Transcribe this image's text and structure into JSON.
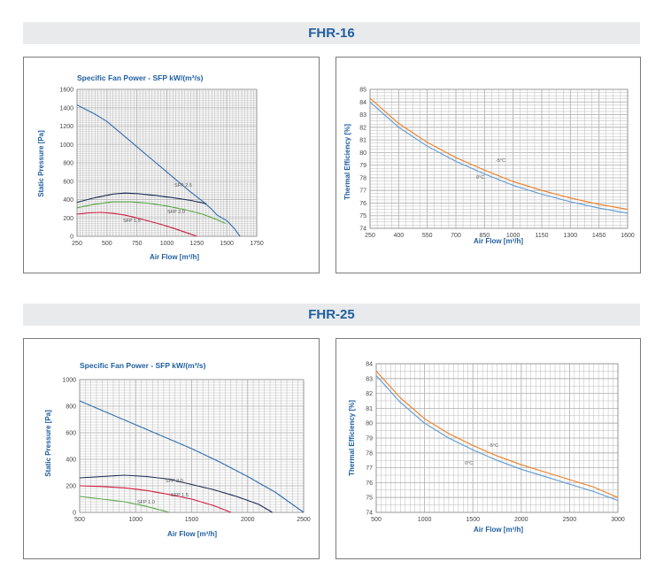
{
  "sections": [
    {
      "title": "FHR-16"
    },
    {
      "title": "FHR-25"
    }
  ],
  "colors": {
    "title_blue": "#1f5fa0",
    "pressure": "#2f6fb0",
    "sfp_dark": "#1a2c52",
    "sfp_green": "#5aaa46",
    "sfp_red": "#d11b3c",
    "thermal_minus5": "#ee7d22",
    "thermal_0": "#5b9bd5",
    "grid": "#b9b9b9"
  },
  "chart_data": [
    {
      "type": "line",
      "title": "Specific Fan Power - SFP kW/(m³/s)",
      "xlabel": "Air Flow [m³/h]",
      "ylabel": "Static Pressure [Pa]",
      "xlim": [
        250,
        1750
      ],
      "ylim": [
        0,
        1600
      ],
      "xticks": [
        250,
        500,
        750,
        1000,
        1250,
        1500,
        1750
      ],
      "yticks": [
        0,
        200,
        400,
        600,
        800,
        1000,
        1200,
        1400,
        1600
      ],
      "grid": true,
      "series": [
        {
          "color": "#2f6fb0",
          "x": [
            250,
            400,
            500,
            600,
            700,
            800,
            900,
            1000,
            1100,
            1200,
            1300,
            1370,
            1420,
            1500,
            1560,
            1610
          ],
          "y": [
            1430,
            1330,
            1250,
            1140,
            1030,
            920,
            810,
            700,
            590,
            480,
            380,
            300,
            230,
            170,
            90,
            0
          ]
        },
        {
          "name": "SFP 2.5",
          "color": "#1a2c52",
          "x": [
            250,
            400,
            550,
            650,
            750,
            900,
            1050,
            1200,
            1330
          ],
          "y": [
            370,
            420,
            460,
            470,
            465,
            445,
            420,
            390,
            355
          ]
        },
        {
          "name": "SFP 2.0",
          "color": "#5aaa46",
          "x": [
            250,
            400,
            550,
            700,
            850,
            1000,
            1150,
            1300,
            1400,
            1490
          ],
          "y": [
            310,
            350,
            375,
            375,
            360,
            330,
            290,
            240,
            190,
            140
          ]
        },
        {
          "name": "SFP 1.5",
          "color": "#d11b3c",
          "x": [
            250,
            350,
            450,
            550,
            650,
            750,
            850,
            950,
            1050,
            1150,
            1250
          ],
          "y": [
            240,
            255,
            260,
            250,
            230,
            200,
            165,
            130,
            90,
            45,
            0
          ]
        }
      ],
      "annotations": [
        {
          "text": "SFP 2.5"
        },
        {
          "text": "SFP 2.0"
        },
        {
          "text": "SFP 1.5"
        }
      ]
    },
    {
      "type": "line",
      "xlabel": "Air Flow [m³/h]",
      "ylabel": "Thermal Efficiency [%]",
      "xlim": [
        250,
        1600
      ],
      "ylim": [
        74,
        85
      ],
      "xticks": [
        250,
        400,
        550,
        700,
        850,
        1000,
        1150,
        1300,
        1450,
        1600
      ],
      "yticks": [
        74,
        75,
        76,
        77,
        78,
        79,
        80,
        81,
        82,
        83,
        84,
        85
      ],
      "grid": true,
      "series": [
        {
          "name": "-5°C",
          "color": "#ee7d22",
          "x": [
            250,
            400,
            550,
            700,
            850,
            1000,
            1150,
            1300,
            1450,
            1600
          ],
          "y": [
            84.3,
            82.3,
            80.8,
            79.6,
            78.6,
            77.7,
            77.0,
            76.4,
            75.9,
            75.5
          ]
        },
        {
          "name": "0°C",
          "color": "#5b9bd5",
          "x": [
            250,
            400,
            550,
            700,
            850,
            1000,
            1150,
            1300,
            1450,
            1600
          ],
          "y": [
            84.0,
            82.0,
            80.5,
            79.3,
            78.3,
            77.4,
            76.7,
            76.1,
            75.6,
            75.2
          ]
        }
      ],
      "annotations": [
        {
          "text": "-5°C"
        },
        {
          "text": "0°C"
        }
      ]
    },
    {
      "type": "line",
      "title": "Specific Fan Power - SFP kW/(m³/s)",
      "xlabel": "Air Flow [m³/h]",
      "ylabel": "Static Pressure [Pa]",
      "xlim": [
        500,
        2500
      ],
      "ylim": [
        0,
        1000
      ],
      "xticks": [
        500,
        1000,
        1500,
        2000,
        2500
      ],
      "yticks": [
        0,
        200,
        400,
        600,
        800,
        1000
      ],
      "grid": true,
      "series": [
        {
          "color": "#2f6fb0",
          "x": [
            500,
            750,
            1000,
            1250,
            1500,
            1750,
            2000,
            2250,
            2500
          ],
          "y": [
            840,
            750,
            660,
            570,
            480,
            380,
            270,
            150,
            0
          ]
        },
        {
          "name": "SFP 2.0",
          "color": "#1a2c52",
          "x": [
            500,
            700,
            900,
            1100,
            1300,
            1500,
            1700,
            1900,
            2100,
            2220
          ],
          "y": [
            260,
            270,
            280,
            270,
            250,
            210,
            170,
            120,
            60,
            0
          ]
        },
        {
          "name": "SFP 1.5",
          "color": "#d11b3c",
          "x": [
            500,
            700,
            900,
            1100,
            1300,
            1500,
            1700,
            1850
          ],
          "y": [
            200,
            195,
            185,
            165,
            135,
            100,
            50,
            0
          ]
        },
        {
          "name": "SFP 1.0",
          "color": "#5aaa46",
          "x": [
            500,
            700,
            900,
            1100,
            1300
          ],
          "y": [
            120,
            100,
            80,
            45,
            0
          ]
        }
      ],
      "annotations": [
        {
          "text": "SFP 2.0"
        },
        {
          "text": "SFP 1.5"
        },
        {
          "text": "SFP 1.0"
        }
      ]
    },
    {
      "type": "line",
      "xlabel": "Air Flow [m³/h]",
      "ylabel": "Thermal Efficiency [%]",
      "xlim": [
        500,
        3000
      ],
      "ylim": [
        74,
        84
      ],
      "xticks": [
        500,
        1000,
        1500,
        2000,
        2500,
        3000
      ],
      "yticks": [
        74,
        75,
        76,
        77,
        78,
        79,
        80,
        81,
        82,
        83,
        84
      ],
      "grid": true,
      "series": [
        {
          "name": "-5°C",
          "color": "#ee7d22",
          "x": [
            500,
            750,
            1000,
            1250,
            1500,
            1750,
            2000,
            2250,
            2500,
            2750,
            3000
          ],
          "y": [
            83.5,
            81.7,
            80.3,
            79.3,
            78.5,
            77.8,
            77.2,
            76.7,
            76.2,
            75.7,
            75.0
          ]
        },
        {
          "name": "0°C",
          "color": "#5b9bd5",
          "x": [
            500,
            750,
            1000,
            1250,
            1500,
            1750,
            2000,
            2250,
            2500,
            2750,
            3000
          ],
          "y": [
            83.2,
            81.4,
            80.0,
            79.0,
            78.2,
            77.5,
            76.9,
            76.4,
            75.9,
            75.4,
            74.8
          ]
        }
      ],
      "annotations": [
        {
          "text": "-5°C"
        },
        {
          "text": "0°C"
        }
      ]
    }
  ]
}
